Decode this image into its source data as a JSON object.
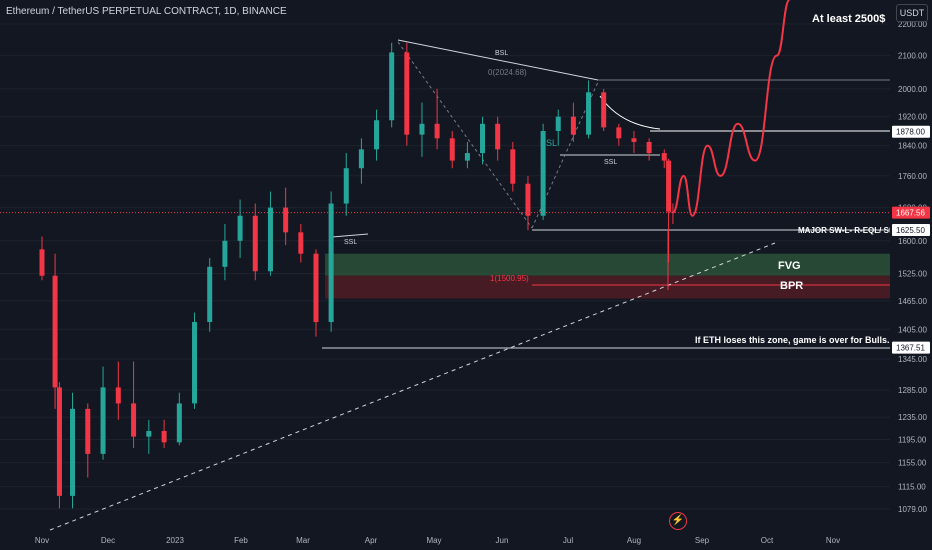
{
  "header": {
    "symbol_title": "Ethereum / TetherUS PERPETUAL CONTRACT, 1D, BINANCE"
  },
  "toolbar": {
    "currency_label": "USDT",
    "flash_icon": "lightning-icon"
  },
  "colors": {
    "background": "#131722",
    "up": "#26a69a",
    "down": "#f23645",
    "grid": "#1e222d",
    "text": "#d1d4dc",
    "projection": "#f23645",
    "fvg_zone": "#2f5a3c",
    "bpr_zone": "#5a1e26"
  },
  "chart_data": {
    "type": "candlestick",
    "title": "Ethereum / TetherUS PERPETUAL CONTRACT, 1D, BINANCE",
    "x_ticks": [
      "Nov",
      "Dec",
      "2023",
      "Feb",
      "Mar",
      "Apr",
      "May",
      "Jun",
      "Jul",
      "Aug",
      "Sep",
      "Oct",
      "Nov"
    ],
    "y_ticks": [
      2200,
      2100,
      2000,
      1920,
      1840,
      1760,
      1680,
      1600,
      1525,
      1465,
      1405,
      1345,
      1285,
      1235,
      1195,
      1155,
      1115,
      1079
    ],
    "y_scale": "log",
    "ylim": [
      1060,
      2280
    ],
    "price_labels": [
      {
        "value": "1878.00",
        "style": "level"
      },
      {
        "value": "1667.56",
        "style": "current"
      },
      {
        "value": "1625.50",
        "style": "level"
      },
      {
        "value": "1367.51",
        "style": "level"
      }
    ],
    "candles": [
      {
        "date": "2022-11-01",
        "o": 1580,
        "h": 1610,
        "l": 1510,
        "c": 1520
      },
      {
        "date": "2022-11-07",
        "o": 1520,
        "h": 1570,
        "l": 1250,
        "c": 1290
      },
      {
        "date": "2022-11-09",
        "o": 1290,
        "h": 1300,
        "l": 1080,
        "c": 1100
      },
      {
        "date": "2022-11-15",
        "o": 1100,
        "h": 1280,
        "l": 1080,
        "c": 1250
      },
      {
        "date": "2022-11-22",
        "o": 1250,
        "h": 1260,
        "l": 1130,
        "c": 1170
      },
      {
        "date": "2022-11-29",
        "o": 1170,
        "h": 1330,
        "l": 1160,
        "c": 1290
      },
      {
        "date": "2022-12-06",
        "o": 1290,
        "h": 1340,
        "l": 1230,
        "c": 1260
      },
      {
        "date": "2022-12-13",
        "o": 1260,
        "h": 1340,
        "l": 1180,
        "c": 1200
      },
      {
        "date": "2022-12-20",
        "o": 1200,
        "h": 1230,
        "l": 1170,
        "c": 1210
      },
      {
        "date": "2022-12-27",
        "o": 1210,
        "h": 1230,
        "l": 1180,
        "c": 1190
      },
      {
        "date": "2023-01-03",
        "o": 1190,
        "h": 1280,
        "l": 1185,
        "c": 1260
      },
      {
        "date": "2023-01-10",
        "o": 1260,
        "h": 1440,
        "l": 1250,
        "c": 1420
      },
      {
        "date": "2023-01-17",
        "o": 1420,
        "h": 1560,
        "l": 1400,
        "c": 1540
      },
      {
        "date": "2023-01-24",
        "o": 1540,
        "h": 1640,
        "l": 1510,
        "c": 1600
      },
      {
        "date": "2023-01-31",
        "o": 1600,
        "h": 1700,
        "l": 1560,
        "c": 1660
      },
      {
        "date": "2023-02-07",
        "o": 1660,
        "h": 1690,
        "l": 1510,
        "c": 1530
      },
      {
        "date": "2023-02-14",
        "o": 1530,
        "h": 1720,
        "l": 1520,
        "c": 1680
      },
      {
        "date": "2023-02-21",
        "o": 1680,
        "h": 1730,
        "l": 1590,
        "c": 1620
      },
      {
        "date": "2023-02-28",
        "o": 1620,
        "h": 1640,
        "l": 1550,
        "c": 1570
      },
      {
        "date": "2023-03-07",
        "o": 1570,
        "h": 1580,
        "l": 1390,
        "c": 1420
      },
      {
        "date": "2023-03-14",
        "o": 1420,
        "h": 1720,
        "l": 1400,
        "c": 1690
      },
      {
        "date": "2023-03-21",
        "o": 1690,
        "h": 1820,
        "l": 1660,
        "c": 1780
      },
      {
        "date": "2023-03-28",
        "o": 1780,
        "h": 1860,
        "l": 1740,
        "c": 1830
      },
      {
        "date": "2023-04-04",
        "o": 1830,
        "h": 1940,
        "l": 1800,
        "c": 1910
      },
      {
        "date": "2023-04-11",
        "o": 1910,
        "h": 2140,
        "l": 1890,
        "c": 2110
      },
      {
        "date": "2023-04-18",
        "o": 2110,
        "h": 2140,
        "l": 1840,
        "c": 1870
      },
      {
        "date": "2023-04-25",
        "o": 1870,
        "h": 1960,
        "l": 1810,
        "c": 1900
      },
      {
        "date": "2023-05-02",
        "o": 1900,
        "h": 2000,
        "l": 1830,
        "c": 1860
      },
      {
        "date": "2023-05-09",
        "o": 1860,
        "h": 1880,
        "l": 1780,
        "c": 1800
      },
      {
        "date": "2023-05-16",
        "o": 1800,
        "h": 1850,
        "l": 1780,
        "c": 1820
      },
      {
        "date": "2023-05-23",
        "o": 1820,
        "h": 1920,
        "l": 1790,
        "c": 1900
      },
      {
        "date": "2023-05-30",
        "o": 1900,
        "h": 1920,
        "l": 1800,
        "c": 1830
      },
      {
        "date": "2023-06-06",
        "o": 1830,
        "h": 1850,
        "l": 1720,
        "c": 1740
      },
      {
        "date": "2023-06-13",
        "o": 1740,
        "h": 1760,
        "l": 1625,
        "c": 1660
      },
      {
        "date": "2023-06-20",
        "o": 1660,
        "h": 1900,
        "l": 1650,
        "c": 1880
      },
      {
        "date": "2023-06-27",
        "o": 1880,
        "h": 1940,
        "l": 1840,
        "c": 1920
      },
      {
        "date": "2023-07-04",
        "o": 1920,
        "h": 1960,
        "l": 1850,
        "c": 1870
      },
      {
        "date": "2023-07-11",
        "o": 1870,
        "h": 2025,
        "l": 1860,
        "c": 1990
      },
      {
        "date": "2023-07-18",
        "o": 1990,
        "h": 2000,
        "l": 1880,
        "c": 1890
      },
      {
        "date": "2023-07-25",
        "o": 1890,
        "h": 1900,
        "l": 1840,
        "c": 1860
      },
      {
        "date": "2023-08-01",
        "o": 1860,
        "h": 1880,
        "l": 1820,
        "c": 1850
      },
      {
        "date": "2023-08-08",
        "o": 1850,
        "h": 1860,
        "l": 1800,
        "c": 1820
      },
      {
        "date": "2023-08-15",
        "o": 1820,
        "h": 1830,
        "l": 1780,
        "c": 1800
      },
      {
        "date": "2023-08-17",
        "o": 1800,
        "h": 1805,
        "l": 1550,
        "c": 1670
      },
      {
        "date": "2023-08-19",
        "o": 1670,
        "h": 1690,
        "l": 1640,
        "c": 1668
      }
    ],
    "projection": [
      {
        "date": "2023-08-19",
        "v": 1668
      },
      {
        "date": "2023-08-24",
        "v": 1760
      },
      {
        "date": "2023-08-28",
        "v": 1660
      },
      {
        "date": "2023-09-04",
        "v": 1840
      },
      {
        "date": "2023-09-10",
        "v": 1760
      },
      {
        "date": "2023-09-18",
        "v": 1900
      },
      {
        "date": "2023-09-26",
        "v": 1800
      },
      {
        "date": "2023-10-06",
        "v": 2100
      },
      {
        "date": "2023-10-12",
        "v": 2280
      }
    ],
    "annotations": {
      "bsl_top": "BSL",
      "fib_0": "0(2024.68)",
      "bsl_mid": "BSL",
      "ssl_jul": "SSL",
      "ssl_mar": "SSL",
      "fib_1": "1(1500.95)",
      "major_level": "MAJOR SW-L- R-EQL/ SSL",
      "fvg": "FVG",
      "bpr": "BPR",
      "warning": "If ETH loses this zone, game is over for Bulls.",
      "target": "At least 2500$"
    }
  }
}
